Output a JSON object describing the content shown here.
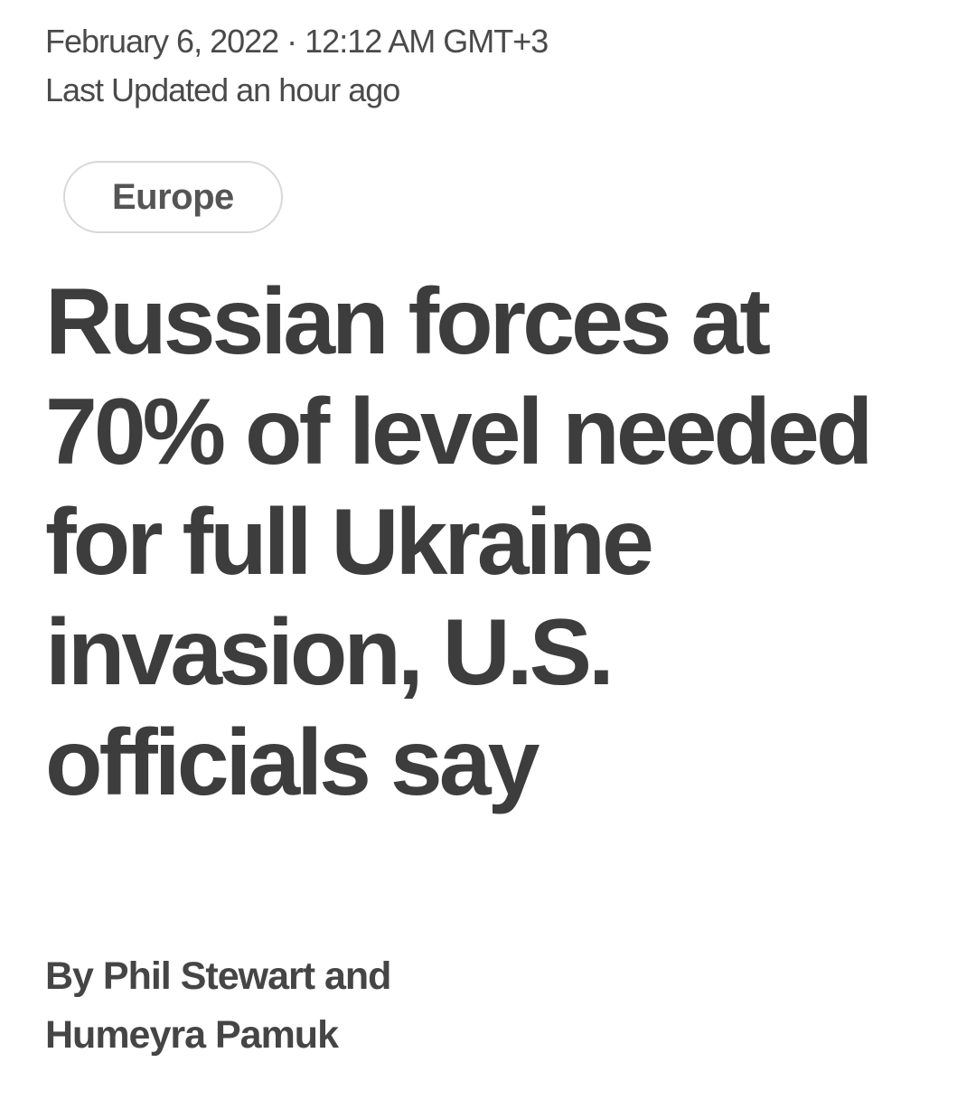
{
  "meta": {
    "date_line": "February 6, 2022 · 12:12 AM GMT+3",
    "last_updated": "Last Updated an hour ago"
  },
  "category": {
    "label": "Europe"
  },
  "headline": {
    "text": "Russian forces at 70% of level needed for full Ukraine invasion, U.S. officials say",
    "lines": [
      "Russian forces at",
      "70% of level needed",
      "for full Ukraine",
      "invasion, U.S.",
      "officials say"
    ]
  },
  "byline": {
    "text": "By Phil Stewart and Humeyra Pamuk",
    "lines": [
      "By Phil Stewart and",
      "Humeyra Pamuk"
    ],
    "authors": [
      "Phil Stewart",
      "Humeyra Pamuk"
    ]
  },
  "colors": {
    "background": "#ffffff",
    "text_headline": "#3d3d3d",
    "text_meta": "#4a4a4a",
    "text_byline": "#454545",
    "pill_border": "#d8d8d8",
    "pill_text": "#555555"
  }
}
